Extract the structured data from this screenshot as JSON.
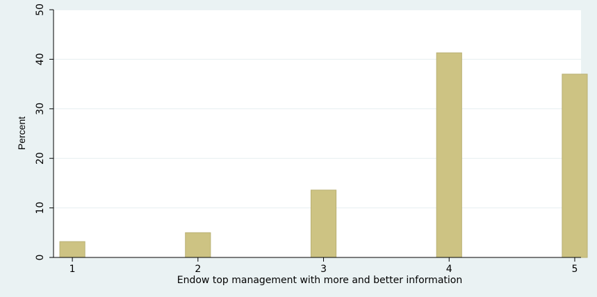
{
  "chart_data": {
    "type": "bar",
    "categories": [
      "1",
      "2",
      "3",
      "4",
      "5"
    ],
    "values": [
      3.2,
      5.0,
      13.6,
      41.3,
      37.0
    ],
    "title": "",
    "xlabel": "Endow top management with more and better information",
    "ylabel": "Percent",
    "ylim": [
      0,
      50
    ],
    "xlim": [
      0.85,
      5.05
    ],
    "yticks": [
      "0",
      "10",
      "20",
      "30",
      "40",
      "50"
    ],
    "grid": "horizontal",
    "legend": "none",
    "colors": {
      "bar_fill": "#cdc383",
      "bar_stroke": "#b9b073",
      "plot_background": "#ffffff",
      "page_background": "#eaf2f3",
      "grid": "#e6eef0",
      "axis": "#000000"
    }
  }
}
